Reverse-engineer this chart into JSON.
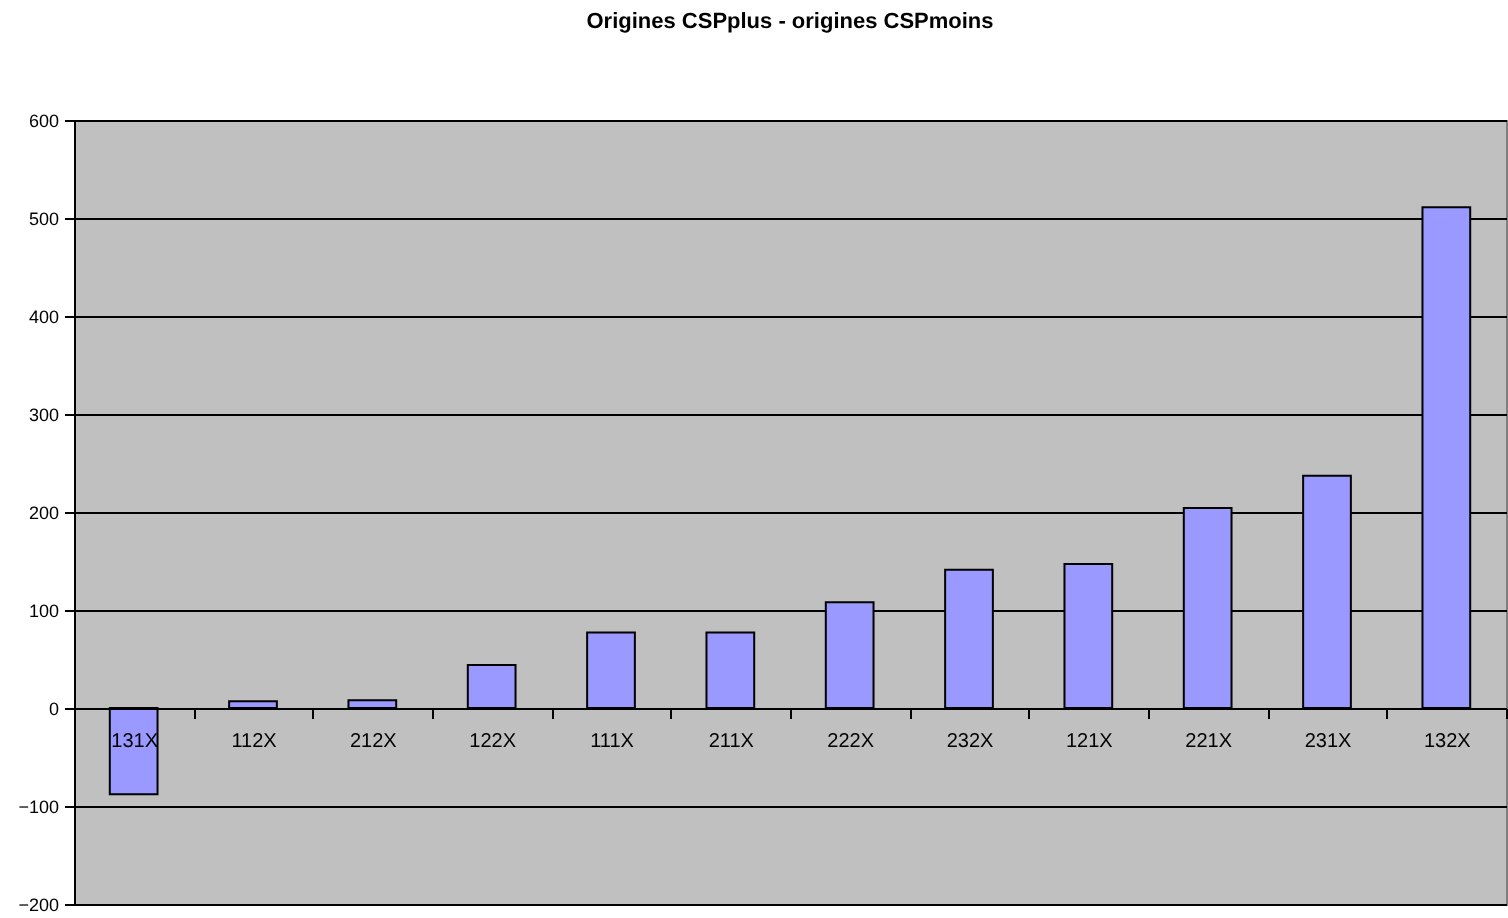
{
  "chart_data": {
    "type": "bar",
    "title": "Origines CSPplus -  origines CSPmoins",
    "categories": [
      "131X",
      "112X",
      "212X",
      "122X",
      "111X",
      "211X",
      "222X",
      "232X",
      "121X",
      "221X",
      "231X",
      "132X"
    ],
    "values": [
      -88,
      7,
      8,
      44,
      77,
      77,
      108,
      141,
      147,
      204,
      237,
      511
    ],
    "color": "#9999ff",
    "ylim": [
      -200,
      600
    ],
    "yticks": [
      -200,
      -100,
      0,
      100,
      200,
      300,
      400,
      500,
      600
    ],
    "grid": true
  }
}
